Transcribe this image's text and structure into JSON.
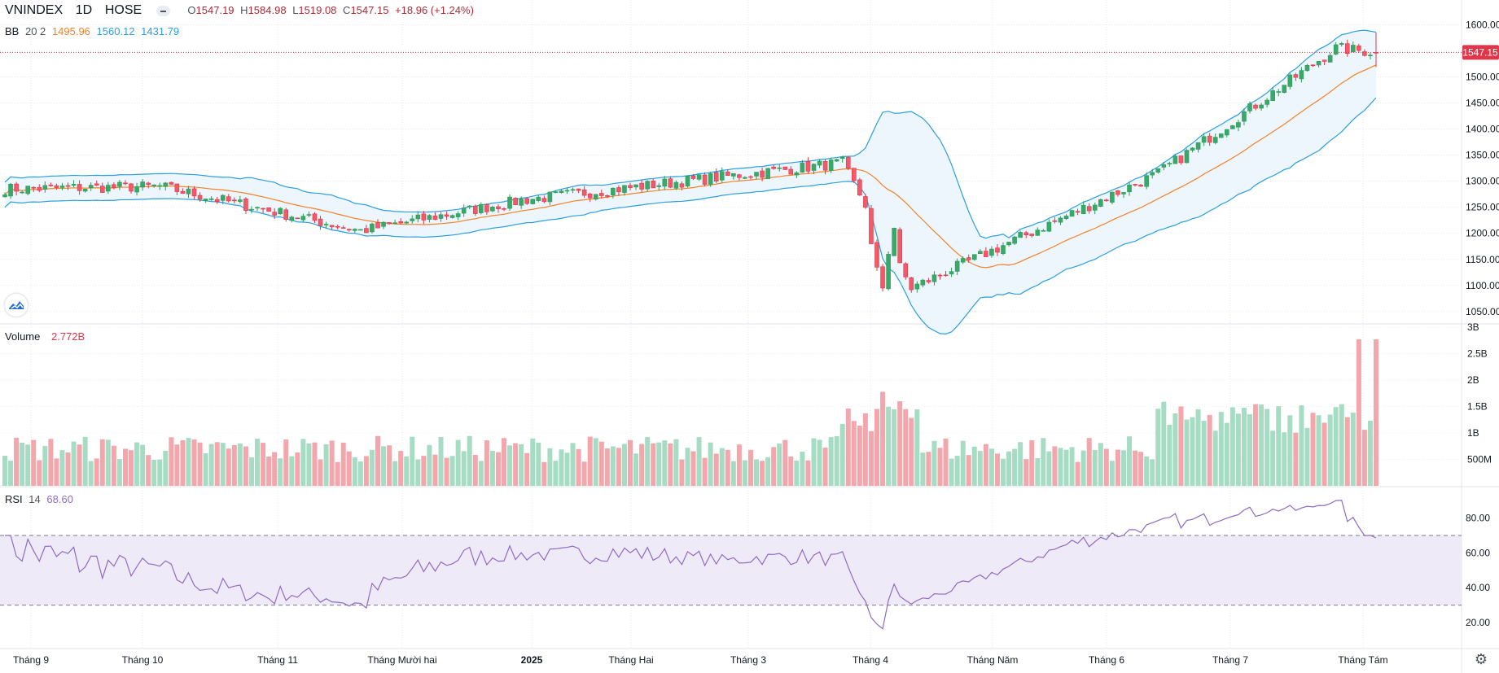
{
  "header": {
    "symbol": "VNINDEX",
    "interval": "1D",
    "exchange": "HOSE",
    "open_label": "O",
    "open": "1547.19",
    "high_label": "H",
    "high": "1584.98",
    "low_label": "L",
    "low": "1519.08",
    "close_label": "C",
    "close": "1547.15",
    "change": "+18.96 (+1.24%)"
  },
  "bb_legend": {
    "label": "BB",
    "params": "20 2",
    "basis": "1495.96",
    "upper": "1560.12",
    "lower": "1431.79"
  },
  "volume_legend": {
    "label": "Volume",
    "value": "2.772B"
  },
  "rsi_legend": {
    "label": "RSI",
    "params": "14",
    "value": "68.60"
  },
  "price_badge": "1547.15",
  "colors": {
    "up": "#26a69a",
    "down": "#ef5350",
    "up_candle": "#2e9c55",
    "down_candle": "#e0364a",
    "vol_up": "#a7dcc4",
    "vol_down": "#f3a6ac",
    "bb_band": "#2a9fe0",
    "bb_basis": "#f5812a",
    "rsi_line": "#8e6cc4",
    "rsi_fill": "#efeaf8",
    "bb_fill": "#edf6fc"
  },
  "chart_data": {
    "type": "candlestick",
    "price_axis": {
      "ticks": [
        1050,
        1100,
        1150,
        1200,
        1250,
        1300,
        1350,
        1400,
        1450,
        1500,
        1550,
        1600
      ],
      "tick_labels": [
        "1050.00",
        "1100.00",
        "1150.00",
        "1200.00",
        "1250.00",
        "1300.00",
        "1350.00",
        "1400.00",
        "1450.00",
        "1500.00",
        "1550.00",
        "1600.00"
      ],
      "range": [
        1025,
        1625
      ]
    },
    "volume_axis": {
      "ticks": [
        500000000,
        1000000000,
        1500000000,
        2000000000,
        2500000000,
        3000000000
      ],
      "tick_labels": [
        "500M",
        "1B",
        "1.5B",
        "2B",
        "2.5B",
        "3B"
      ]
    },
    "rsi_axis": {
      "ticks": [
        20,
        40,
        60,
        80
      ],
      "tick_labels": [
        "20.00",
        "40.00",
        "60.00",
        "80.00"
      ],
      "upper_band": 70,
      "lower_band": 30
    },
    "time_axis": {
      "labels": [
        "Tháng 9",
        "Tháng 10",
        "Tháng 11",
        "Tháng Mười hai",
        "2025",
        "Tháng Hai",
        "Tháng 3",
        "Tháng 4",
        "Tháng Năm",
        "Tháng 6",
        "Tháng 7",
        "Tháng Tám"
      ],
      "bold_index": 4
    },
    "last_close": 1547.15,
    "key_points": [
      {
        "date": "2024-08-26",
        "close": 1285
      },
      {
        "date": "2024-10-02",
        "close": 1290
      },
      {
        "date": "2024-11-19",
        "close": 1205
      },
      {
        "date": "2024-12-31",
        "close": 1265
      },
      {
        "date": "2025-03-20",
        "close": 1335
      },
      {
        "date": "2025-04-08",
        "close": 1095
      },
      {
        "date": "2025-06-10",
        "close": 1315
      },
      {
        "date": "2025-07-25",
        "close": 1555
      },
      {
        "date": "2025-08-08",
        "close": 1547.15
      }
    ]
  }
}
